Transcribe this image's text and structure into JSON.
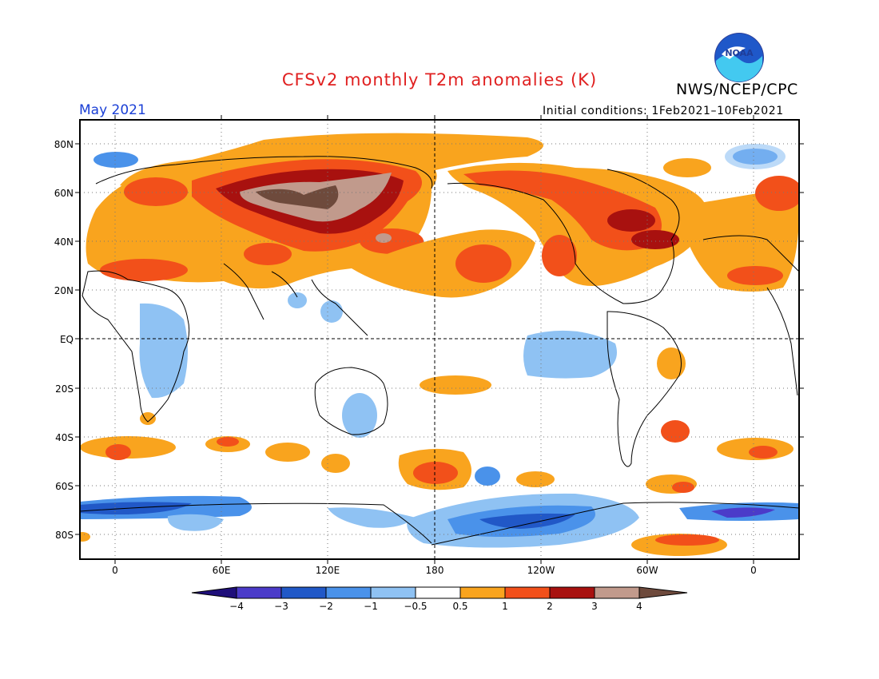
{
  "header": {
    "title": "CFSv2 monthly T2m anomalies (K)",
    "agency": "NWS/NCEP/CPC",
    "month": "May 2021",
    "initial_conditions": "Initial conditions: 1Feb2021–10Feb2021",
    "logo_text": "NOAA"
  },
  "map": {
    "lat_labels": [
      "80N",
      "60N",
      "40N",
      "20N",
      "EQ",
      "20S",
      "40S",
      "60S",
      "80S"
    ],
    "lon_labels": [
      "0",
      "60E",
      "120E",
      "180",
      "120W",
      "60W",
      "0"
    ],
    "grid": true,
    "dateline_dashed": true,
    "equator_dashed": true
  },
  "colorbar": {
    "labels": [
      "−4",
      "−3",
      "−2",
      "−1",
      "−0.5",
      "0.5",
      "1",
      "2",
      "3",
      "4"
    ],
    "colors": {
      "lt_m4": "#1f0f7a",
      "m4_m3": "#4b3bc9",
      "m3_m2": "#2158c7",
      "m2_m1": "#4a92ea",
      "m1_m05": "#8fc2f3",
      "neutral": "#ffffff",
      "p05_p1": "#f9a41e",
      "p1_p2": "#f2501a",
      "p2_p3": "#a8110f",
      "p3_p4": "#c19a8c",
      "gt_p4": "#6e4a3c"
    }
  }
}
